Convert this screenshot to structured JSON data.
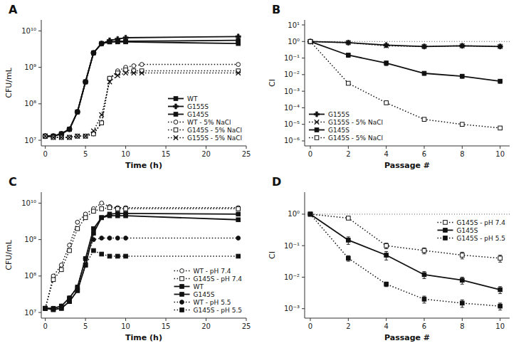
{
  "chart_data": [
    {
      "type": "line",
      "title": "A",
      "x_label": "Time (h)",
      "y_label": "CFU/mL",
      "log": "y",
      "grid": false,
      "legend": "lower right",
      "xlim": [
        -0.5,
        25
      ],
      "xticks": [
        0,
        5,
        10,
        15,
        20,
        25
      ],
      "ylim": [
        7000000.0,
        20000000000.0
      ],
      "yticks": [
        {
          "value": 10000000.0,
          "label": "10⁷"
        },
        {
          "value": 100000000.0,
          "label": "10⁸"
        },
        {
          "value": 1000000000.0,
          "label": "10⁹"
        },
        {
          "value": 10000000000.0,
          "label": "10¹⁰"
        }
      ],
      "series": [
        {
          "name": "WT",
          "x": [
            0,
            1,
            2,
            3,
            4,
            5,
            6,
            7,
            8,
            9,
            10,
            24
          ],
          "values": [
            13000000.0,
            13000000.0,
            15000000.0,
            20000000.0,
            60000000.0,
            400000000.0,
            2500000000.0,
            4500000000.0,
            5000000000.0,
            5200000000.0,
            5200000000.0,
            5500000000.0
          ],
          "color": "#111111",
          "marker": "square",
          "line_style": "solid"
        },
        {
          "name": "G155S",
          "x": [
            0,
            1,
            2,
            3,
            4,
            5,
            6,
            7,
            8,
            9,
            10,
            24
          ],
          "values": [
            13000000.0,
            13000000.0,
            15000000.0,
            20000000.0,
            60000000.0,
            400000000.0,
            2500000000.0,
            4500000000.0,
            5500000000.0,
            6000000000.0,
            6500000000.0,
            7000000000.0
          ],
          "color": "#111111",
          "marker": "plus",
          "line_style": "solid"
        },
        {
          "name": "G145S",
          "x": [
            0,
            1,
            2,
            3,
            4,
            5,
            6,
            7,
            8,
            9,
            10,
            24
          ],
          "values": [
            13000000.0,
            13000000.0,
            15000000.0,
            20000000.0,
            60000000.0,
            400000000.0,
            2500000000.0,
            4500000000.0,
            5000000000.0,
            5000000000.0,
            5000000000.0,
            4500000000.0
          ],
          "color": "#111111",
          "marker": "square",
          "line_style": "solid"
        },
        {
          "name": "WT - 5% NaCl",
          "x": [
            0,
            1,
            2,
            3,
            4,
            5,
            6,
            7,
            8,
            9,
            10,
            11,
            12,
            24
          ],
          "values": [
            13000000.0,
            12000000.0,
            12000000.0,
            12000000.0,
            13000000.0,
            13000000.0,
            15000000.0,
            30000000.0,
            500000000.0,
            800000000.0,
            1000000000.0,
            1100000000.0,
            1200000000.0,
            1200000000.0
          ],
          "color": "#111111",
          "marker": "open-circle",
          "line_style": "dotted"
        },
        {
          "name": "G145S - 5% NaCl",
          "x": [
            0,
            1,
            2,
            3,
            4,
            5,
            6,
            7,
            8,
            9,
            10,
            11,
            12,
            24
          ],
          "values": [
            13000000.0,
            12000000.0,
            12000000.0,
            12000000.0,
            13000000.0,
            13000000.0,
            15000000.0,
            30000000.0,
            500000000.0,
            700000000.0,
            850000000.0,
            800000000.0,
            800000000.0,
            800000000.0
          ],
          "color": "#111111",
          "marker": "open-square",
          "line_style": "dotted"
        },
        {
          "name": "G155S - 5% NaCl",
          "x": [
            0,
            1,
            2,
            3,
            4,
            5,
            6,
            7,
            8,
            9,
            10,
            11,
            12,
            24
          ],
          "values": [
            13000000.0,
            12000000.0,
            12000000.0,
            12000000.0,
            13000000.0,
            13000000.0,
            18000000.0,
            50000000.0,
            400000000.0,
            600000000.0,
            700000000.0,
            700000000.0,
            700000000.0,
            700000000.0
          ],
          "color": "#111111",
          "marker": "x",
          "line_style": "dotted"
        }
      ]
    },
    {
      "type": "line",
      "title": "B",
      "x_label": "Passage #",
      "y_label": "CI",
      "log": "y",
      "grid": false,
      "legend": "lower left",
      "ref_line": 1,
      "xlim": [
        -0.3,
        10.5
      ],
      "xticks": [
        0,
        2,
        4,
        6,
        8,
        10
      ],
      "ylim": [
        5e-07,
        20.0
      ],
      "yticks": [
        {
          "value": 1e-06,
          "label": "10⁻⁶"
        },
        {
          "value": 1e-05,
          "label": "10⁻⁵"
        },
        {
          "value": 0.0001,
          "label": "10⁻⁴"
        },
        {
          "value": 0.001,
          "label": "10⁻³"
        },
        {
          "value": 0.01,
          "label": "10⁻²"
        },
        {
          "value": 0.1,
          "label": "10⁻¹"
        },
        {
          "value": 1,
          "label": "10⁰"
        },
        {
          "value": 10,
          "label": "10¹"
        }
      ],
      "series": [
        {
          "name": "G155S",
          "x": [
            0,
            2,
            4,
            6,
            8,
            10
          ],
          "values": [
            1.0,
            0.85,
            0.6,
            0.5,
            0.55,
            0.5
          ],
          "errors": [
            0.0,
            0.05,
            0.07,
            0.05,
            0.06,
            0.04
          ],
          "color": "#111111",
          "marker": "plus",
          "line_style": "solid"
        },
        {
          "name": "G155S - 5% NaCl",
          "x": [
            0,
            2,
            4,
            6,
            8,
            10
          ],
          "values": [
            1.0,
            0.85,
            0.55,
            0.5,
            0.55,
            0.5
          ],
          "errors": [
            0.0,
            0.06,
            0.07,
            0.05,
            0.06,
            0.04
          ],
          "color": "#111111",
          "marker": "x",
          "line_style": "dotted"
        },
        {
          "name": "G145S",
          "x": [
            0,
            2,
            4,
            6,
            8,
            10
          ],
          "values": [
            1.0,
            0.15,
            0.05,
            0.012,
            0.008,
            0.004
          ],
          "errors": [
            0.0,
            0.04,
            0.015,
            0.003,
            0.002,
            0.001
          ],
          "color": "#111111",
          "marker": "square",
          "line_style": "solid"
        },
        {
          "name": "G145S - 5% NaCl",
          "x": [
            0,
            2,
            4,
            6,
            8,
            10
          ],
          "values": [
            1.0,
            0.003,
            0.0002,
            2e-05,
            1e-05,
            6e-06
          ],
          "errors": [
            0.0,
            0.0004,
            4e-05,
            4e-06,
            2e-06,
            1e-06
          ],
          "color": "#111111",
          "marker": "open-square",
          "line_style": "dotted"
        }
      ]
    },
    {
      "type": "line",
      "title": "C",
      "x_label": "Time (h)",
      "y_label": "CFU/mL",
      "log": "y",
      "grid": false,
      "legend": "lower right",
      "xlim": [
        -0.5,
        25
      ],
      "xticks": [
        0,
        5,
        10,
        15,
        20,
        25
      ],
      "ylim": [
        7000000.0,
        20000000000.0
      ],
      "yticks": [
        {
          "value": 10000000.0,
          "label": "10⁷"
        },
        {
          "value": 100000000.0,
          "label": "10⁸"
        },
        {
          "value": 1000000000.0,
          "label": "10⁹"
        },
        {
          "value": 10000000000.0,
          "label": "10¹⁰"
        }
      ],
      "series": [
        {
          "name": "WT - pH 7.4",
          "x": [
            0,
            1,
            2,
            3,
            4,
            5,
            6,
            7,
            8,
            9,
            10,
            24
          ],
          "values": [
            13000000.0,
            100000000.0,
            200000000.0,
            700000000.0,
            3000000000.0,
            5000000000.0,
            7000000000.0,
            10000000000.0,
            8000000000.0,
            7500000000.0,
            7500000000.0,
            7500000000.0
          ],
          "color": "#111111",
          "marker": "open-circle",
          "line_style": "dotted"
        },
        {
          "name": "G145S - pH 7.4",
          "x": [
            0,
            1,
            2,
            3,
            4,
            5,
            6,
            7,
            8,
            9,
            10,
            24
          ],
          "values": [
            13000000.0,
            80000000.0,
            150000000.0,
            500000000.0,
            2000000000.0,
            4000000000.0,
            6000000000.0,
            7000000000.0,
            7500000000.0,
            7000000000.0,
            7000000000.0,
            7000000000.0
          ],
          "color": "#111111",
          "marker": "open-square",
          "line_style": "dotted"
        },
        {
          "name": "WT",
          "x": [
            0,
            1,
            2,
            3,
            4,
            5,
            6,
            7,
            8,
            9,
            10,
            24
          ],
          "values": [
            13000000.0,
            13000000.0,
            15000000.0,
            25000000.0,
            50000000.0,
            300000000.0,
            2000000000.0,
            4000000000.0,
            5000000000.0,
            5200000000.0,
            5200000000.0,
            5000000000.0
          ],
          "color": "#111111",
          "marker": "square",
          "line_style": "solid"
        },
        {
          "name": "G145S",
          "x": [
            0,
            1,
            2,
            3,
            4,
            5,
            6,
            7,
            8,
            9,
            10,
            24
          ],
          "values": [
            13000000.0,
            12000000.0,
            13000000.0,
            20000000.0,
            40000000.0,
            200000000.0,
            1500000000.0,
            4000000000.0,
            4500000000.0,
            4500000000.0,
            4500000000.0,
            3500000000.0
          ],
          "color": "#111111",
          "marker": "square",
          "line_style": "solid"
        },
        {
          "name": "WT - pH 5.5",
          "x": [
            0,
            1,
            2,
            3,
            4,
            5,
            6,
            7,
            8,
            9,
            10,
            24
          ],
          "values": [
            13000000.0,
            13000000.0,
            15000000.0,
            25000000.0,
            50000000.0,
            300000000.0,
            1000000000.0,
            1100000000.0,
            1100000000.0,
            1100000000.0,
            1100000000.0,
            1100000000.0
          ],
          "color": "#111111",
          "marker": "circle",
          "line_style": "dotted"
        },
        {
          "name": "G145S - pH 5.5",
          "x": [
            0,
            1,
            2,
            3,
            4,
            5,
            6,
            7,
            8,
            9,
            10,
            24
          ],
          "values": [
            13000000.0,
            12000000.0,
            13000000.0,
            20000000.0,
            40000000.0,
            200000000.0,
            500000000.0,
            400000000.0,
            350000000.0,
            350000000.0,
            350000000.0,
            350000000.0
          ],
          "color": "#111111",
          "marker": "square",
          "line_style": "dotted"
        }
      ]
    },
    {
      "type": "line",
      "title": "D",
      "x_label": "Passage #",
      "y_label": "CI",
      "log": "y",
      "grid": false,
      "legend": "upper right",
      "ref_line": 1,
      "xlim": [
        -0.3,
        10.5
      ],
      "xticks": [
        0,
        2,
        4,
        6,
        8,
        10
      ],
      "ylim": [
        0.0005,
        5
      ],
      "yticks": [
        {
          "value": 0.001,
          "label": "10⁻³"
        },
        {
          "value": 0.01,
          "label": "10⁻²"
        },
        {
          "value": 0.1,
          "label": "10⁻¹"
        },
        {
          "value": 1,
          "label": "10⁰"
        }
      ],
      "series": [
        {
          "name": "G145S - pH 7.4",
          "x": [
            0,
            2,
            4,
            6,
            8,
            10
          ],
          "values": [
            1.0,
            0.75,
            0.1,
            0.07,
            0.05,
            0.04
          ],
          "errors": [
            0.0,
            0.06,
            0.02,
            0.015,
            0.012,
            0.01
          ],
          "color": "#111111",
          "marker": "open-square",
          "line_style": "dotted"
        },
        {
          "name": "G145S",
          "x": [
            0,
            2,
            4,
            6,
            8,
            10
          ],
          "values": [
            1.0,
            0.15,
            0.05,
            0.012,
            0.008,
            0.004
          ],
          "errors": [
            0.0,
            0.04,
            0.015,
            0.003,
            0.002,
            0.001
          ],
          "color": "#111111",
          "marker": "square",
          "line_style": "solid"
        },
        {
          "name": "G145S - pH 5.5",
          "x": [
            0,
            2,
            4,
            6,
            8,
            10
          ],
          "values": [
            1.0,
            0.04,
            0.006,
            0.002,
            0.0015,
            0.0012
          ],
          "errors": [
            0.0,
            0.008,
            0.001,
            0.0005,
            0.0004,
            0.0003
          ],
          "color": "#111111",
          "marker": "square",
          "line_style": "dotted"
        }
      ]
    }
  ]
}
